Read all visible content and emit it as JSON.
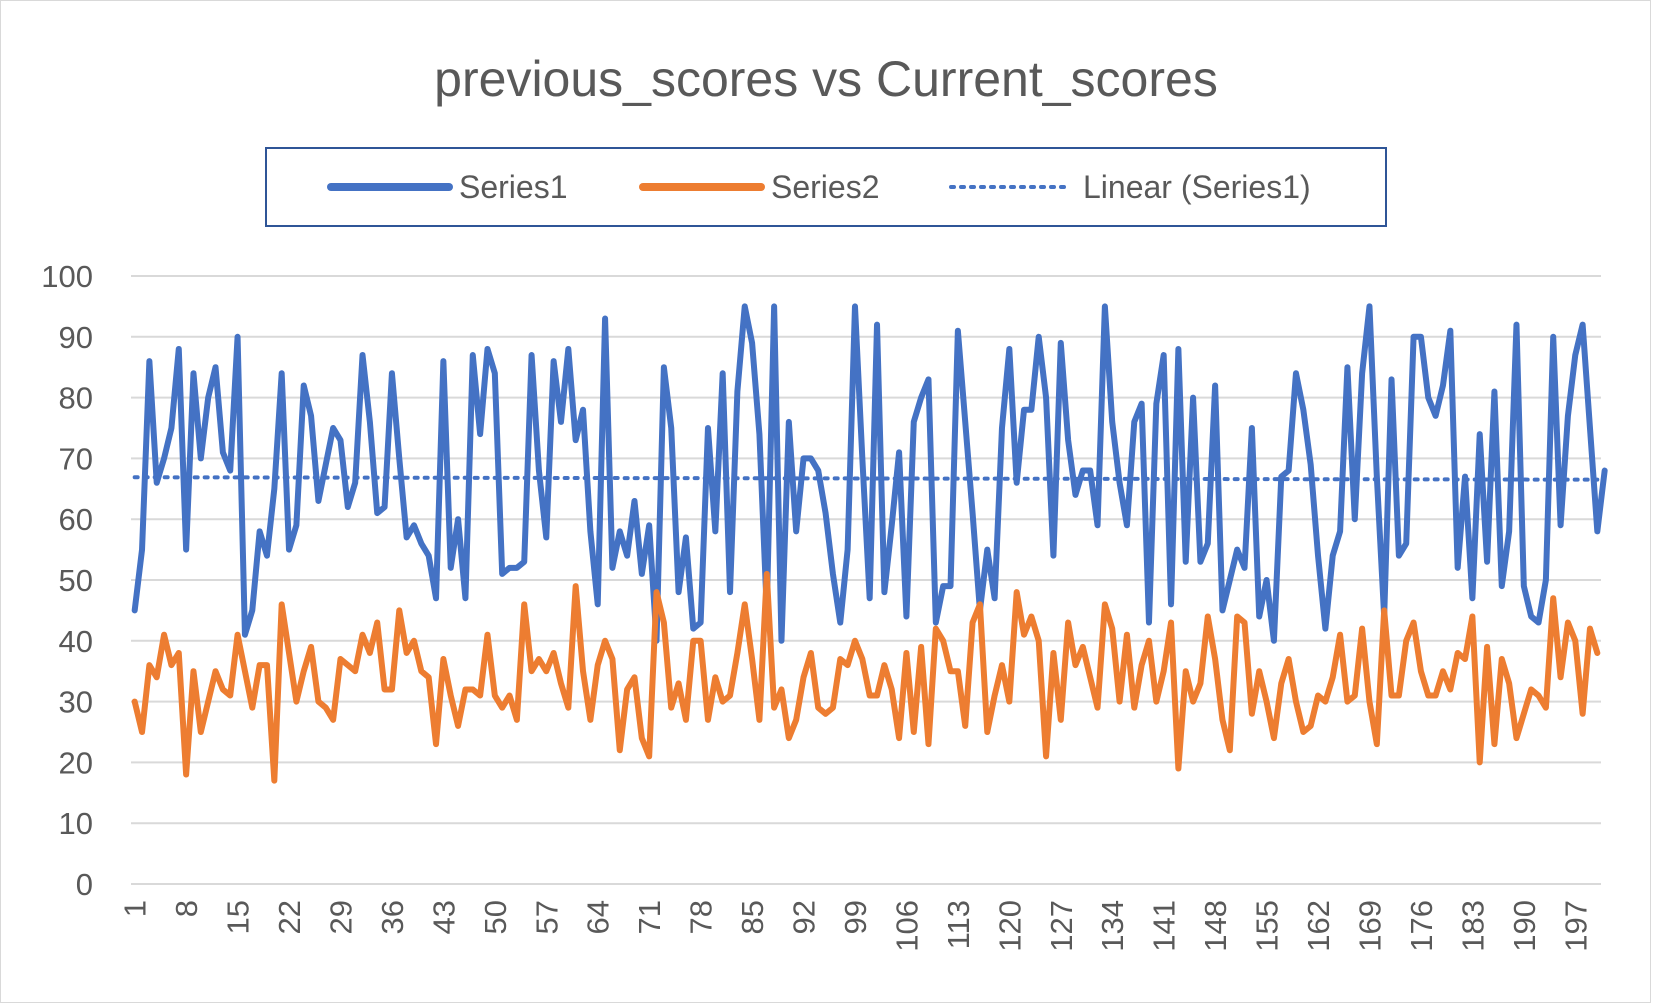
{
  "chart_data": {
    "type": "line",
    "title": "previous_scores vs Current_scores",
    "xlabel": "",
    "ylabel": "",
    "ylim": [
      0,
      100
    ],
    "yticks": [
      0,
      10,
      20,
      30,
      40,
      50,
      60,
      70,
      80,
      90,
      100
    ],
    "x_tick_labels": [
      "1",
      "8",
      "15",
      "22",
      "29",
      "36",
      "43",
      "50",
      "57",
      "64",
      "71",
      "78",
      "85",
      "92",
      "99",
      "106",
      "113",
      "120",
      "127",
      "134",
      "141",
      "148",
      "155",
      "162",
      "169",
      "176",
      "183",
      "190",
      "197"
    ],
    "x_count": 200,
    "grid": "horizontal",
    "legend_position": "top",
    "colors": {
      "series1": "#4472c4",
      "series2": "#ed7d31",
      "grid": "#d9d9d9",
      "text": "#595959"
    },
    "series": [
      {
        "name": "Series1",
        "values": [
          45,
          55,
          86,
          66,
          70,
          75,
          88,
          55,
          84,
          70,
          80,
          85,
          71,
          68,
          90,
          41,
          45,
          58,
          54,
          65,
          84,
          55,
          59,
          82,
          77,
          63,
          69,
          75,
          73,
          62,
          66,
          87,
          76,
          61,
          62,
          84,
          70,
          57,
          59,
          56,
          54,
          47,
          86,
          52,
          60,
          47,
          87,
          74,
          88,
          84,
          51,
          52,
          52,
          53,
          87,
          68,
          57,
          86,
          76,
          88,
          73,
          78,
          58,
          46,
          93,
          52,
          58,
          54,
          63,
          51,
          59,
          40,
          85,
          75,
          48,
          57,
          42,
          43,
          75,
          58,
          84,
          48,
          81,
          95,
          89,
          74,
          45,
          95,
          40,
          76,
          58,
          70,
          70,
          68,
          61,
          51,
          43,
          55,
          95,
          70,
          47,
          92,
          48,
          59,
          71,
          44,
          76,
          80,
          83,
          43,
          49,
          49,
          91,
          76,
          61,
          45,
          55,
          47,
          75,
          88,
          66,
          78,
          78,
          90,
          80,
          54,
          89,
          73,
          64,
          68,
          68,
          59,
          95,
          76,
          66,
          59,
          76,
          79,
          43,
          79,
          87,
          46,
          88,
          53,
          80,
          53,
          56,
          82,
          45,
          50,
          55,
          52,
          75,
          44,
          50,
          40,
          67,
          68,
          84,
          78,
          69,
          54,
          42,
          54,
          58,
          85,
          60,
          84,
          95,
          67,
          44,
          83,
          54,
          56,
          90,
          90,
          80,
          77,
          82,
          91,
          52,
          67,
          47,
          74,
          53,
          81,
          49,
          58,
          92,
          49,
          44,
          43,
          50,
          90,
          59,
          77,
          87,
          92,
          75,
          58,
          68
        ],
        "style": "solid"
      },
      {
        "name": "Series2",
        "values": [
          30,
          25,
          36,
          34,
          41,
          36,
          38,
          18,
          35,
          25,
          30,
          35,
          32,
          31,
          41,
          35,
          29,
          36,
          36,
          17,
          46,
          38,
          30,
          35,
          39,
          30,
          29,
          27,
          37,
          36,
          35,
          41,
          38,
          43,
          32,
          32,
          45,
          38,
          40,
          35,
          34,
          23,
          37,
          31,
          26,
          32,
          32,
          31,
          41,
          31,
          29,
          31,
          27,
          46,
          35,
          37,
          35,
          38,
          33,
          29,
          49,
          35,
          27,
          36,
          40,
          37,
          22,
          32,
          34,
          24,
          21,
          48,
          43,
          29,
          33,
          27,
          40,
          40,
          27,
          34,
          30,
          31,
          38,
          46,
          37,
          27,
          51,
          29,
          32,
          24,
          27,
          34,
          38,
          29,
          28,
          29,
          37,
          36,
          40,
          37,
          31,
          31,
          36,
          32,
          24,
          38,
          25,
          39,
          23,
          42,
          40,
          35,
          35,
          26,
          43,
          46,
          25,
          31,
          36,
          30,
          48,
          41,
          44,
          40,
          21,
          38,
          27,
          43,
          36,
          39,
          34,
          29,
          46,
          42,
          30,
          41,
          29,
          36,
          40,
          30,
          35,
          43,
          19,
          35,
          30,
          33,
          44,
          37,
          27,
          22,
          44,
          43,
          28,
          35,
          30,
          24,
          33,
          37,
          30,
          25,
          26,
          31,
          30,
          34,
          41,
          30,
          31,
          42,
          30,
          23,
          45,
          31,
          31,
          40,
          43,
          35,
          31,
          31,
          35,
          32,
          38,
          37,
          44,
          20,
          39,
          23,
          37,
          33,
          24,
          28,
          32,
          31,
          29,
          47,
          34,
          43,
          40,
          28,
          42,
          38
        ],
        "style": "solid"
      }
    ],
    "trendlines": [
      {
        "name": "Linear (Series1)",
        "of": "Series1",
        "type": "linear",
        "start": 66.9,
        "end": 66.5,
        "style": "dotted"
      }
    ]
  }
}
